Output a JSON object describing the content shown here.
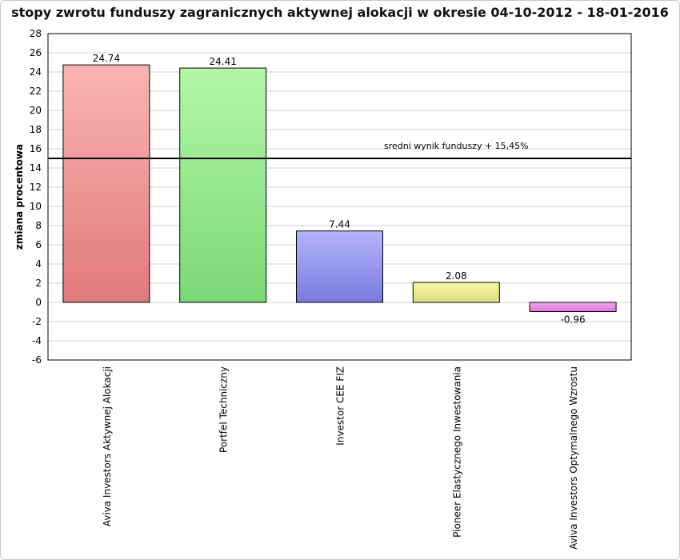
{
  "chart_data": {
    "type": "bar",
    "title": "stopy zwrotu funduszy zagranicznych aktywnej alokacji w okresie  04-10-2012 - 18-01-2016",
    "xlabel": "",
    "ylabel": "zmiana procentowa",
    "ylim": [
      -6,
      28
    ],
    "yticks": [
      28,
      26,
      24,
      22,
      20,
      18,
      16,
      14,
      12,
      10,
      8,
      6,
      4,
      2,
      0,
      -2,
      -4,
      -6
    ],
    "grid": true,
    "categories": [
      "Aviva Investors Aktywnej Alokacji",
      "Portfel Techniczny",
      "Investor CEE FIZ",
      "Pioneer Elastycznego Inwestowania",
      "Aviva Investors Optymalnego Wzrostu"
    ],
    "values": [
      24.74,
      24.41,
      7.44,
      2.08,
      -0.96
    ],
    "value_labels": [
      "24.74",
      "24.41",
      "7.44",
      "2.08",
      "-0.96"
    ],
    "colors": [
      [
        "#fbb4b4",
        "#e07a7a"
      ],
      [
        "#b4f7a6",
        "#7ad877"
      ],
      [
        "#b4b4fb",
        "#7a7adf"
      ],
      [
        "#f7f7a9",
        "#dddd7f"
      ],
      [
        "#f0a8f0",
        "#de78de"
      ]
    ],
    "reference_line": {
      "value": 15,
      "label": "sredni wynik funduszy + 15,45%"
    }
  }
}
